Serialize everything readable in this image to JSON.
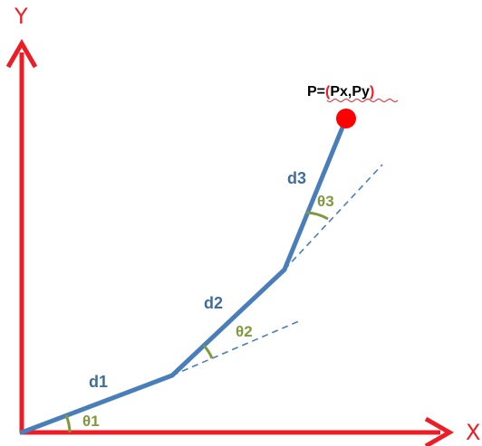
{
  "axes": {
    "x_label": "X",
    "y_label": "Y",
    "color": "#ee1c24"
  },
  "links": [
    {
      "label": "d1",
      "angle_label": "θ1"
    },
    {
      "label": "d2",
      "angle_label": "θ2"
    },
    {
      "label": "d3",
      "angle_label": "θ3"
    }
  ],
  "end_effector": {
    "label_prefix": "P=",
    "label_open": "(",
    "label_coords": "Px,Py",
    "label_close": ")",
    "color": "#ff0000"
  },
  "colors": {
    "link": "#4a7ebb",
    "angle": "#7e9a3c",
    "link_text": "#3f6e9b"
  }
}
